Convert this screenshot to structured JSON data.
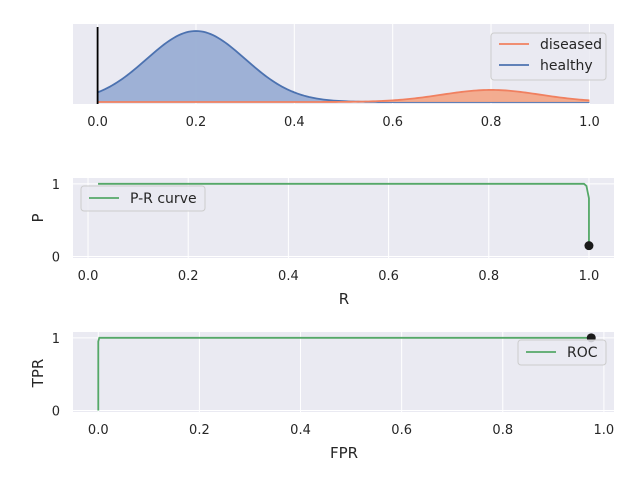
{
  "chart_data": [
    {
      "id": "distributions",
      "type": "area",
      "title": "",
      "xlabel": "",
      "ylabel": "",
      "xlim": [
        -0.05,
        1.05
      ],
      "xticks": [
        "0.0",
        "0.2",
        "0.4",
        "0.6",
        "0.8",
        "1.0"
      ],
      "threshold": 0.0,
      "series": [
        {
          "name": "diseased",
          "color": "#f08060",
          "fill": "#f3a98a",
          "distribution": "normal",
          "mean": 0.8,
          "sd": 0.1,
          "weight": 0.17
        },
        {
          "name": "healthy",
          "color": "#4c72b0",
          "fill": "#9aaed4",
          "distribution": "normal",
          "mean": 0.2,
          "sd": 0.1,
          "weight": 1.0
        }
      ],
      "legend": {
        "position": "upper-right",
        "entries": [
          "diseased",
          "healthy"
        ]
      }
    },
    {
      "id": "pr",
      "type": "line",
      "xlabel": "R",
      "ylabel": "P",
      "xlim": [
        -0.03,
        1.05
      ],
      "ylim": [
        -0.02,
        1.08
      ],
      "xticks": [
        "0.0",
        "0.2",
        "0.4",
        "0.6",
        "0.8",
        "1.0"
      ],
      "yticks": [
        "0",
        "1"
      ],
      "series": [
        {
          "name": "P-R curve",
          "color": "#55a868",
          "x": [
            0.02,
            0.99,
            0.995,
            1.0,
            1.0
          ],
          "y": [
            1.0,
            1.0,
            0.97,
            0.8,
            0.15
          ]
        }
      ],
      "marker": {
        "x": 1.0,
        "y": 0.15,
        "color": "#1a1a1a"
      },
      "legend": {
        "position": "upper-left",
        "entries": [
          "P-R curve"
        ]
      }
    },
    {
      "id": "roc",
      "type": "line",
      "xlabel": "FPR",
      "ylabel": "TPR",
      "xlim": [
        -0.05,
        1.02
      ],
      "ylim": [
        -0.02,
        1.08
      ],
      "xticks": [
        "0.0",
        "0.2",
        "0.4",
        "0.6",
        "0.8",
        "1.0"
      ],
      "yticks": [
        "0",
        "1"
      ],
      "series": [
        {
          "name": "ROC",
          "color": "#55a868",
          "x": [
            0.0,
            0.0,
            0.002,
            0.975
          ],
          "y": [
            0.0,
            0.95,
            1.0,
            1.0
          ]
        }
      ],
      "marker": {
        "x": 0.975,
        "y": 1.0,
        "color": "#1a1a1a"
      },
      "legend": {
        "position": "right",
        "entries": [
          "ROC"
        ]
      }
    }
  ]
}
